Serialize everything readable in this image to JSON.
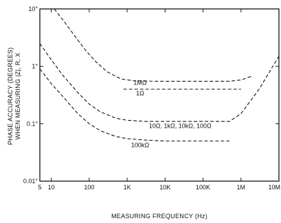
{
  "chart_data": {
    "type": "line",
    "xlabel": "MEASURING FREQUENCY (Hz)",
    "ylabel_line1": "PHASE ACCURACY (DEGREES)",
    "ylabel_line2": "WHEN MEASURING |Z|, R, X",
    "x_scale": "log",
    "y_scale": "log",
    "xlim": [
      5,
      10000000
    ],
    "ylim": [
      0.01,
      10
    ],
    "x_ticks": [
      {
        "value": 5,
        "label": "5"
      },
      {
        "value": 10,
        "label": "10"
      },
      {
        "value": 100,
        "label": "100"
      },
      {
        "value": 1000,
        "label": "1K"
      },
      {
        "value": 10000,
        "label": "10K"
      },
      {
        "value": 100000,
        "label": "100K"
      },
      {
        "value": 1000000,
        "label": "1M"
      },
      {
        "value": 10000000,
        "label": "10M"
      }
    ],
    "y_ticks": [
      {
        "value": 10,
        "label": "10°"
      },
      {
        "value": 1,
        "label": "1°"
      },
      {
        "value": 0.1,
        "label": "0.1°"
      },
      {
        "value": 0.01,
        "label": "0.01°"
      }
    ],
    "series": [
      {
        "name": "1MΩ",
        "x": [
          12,
          20,
          40,
          80,
          150,
          300,
          700,
          1500,
          5000,
          20000,
          100000,
          500000,
          1000000,
          2000000
        ],
        "y": [
          10,
          6.5,
          3.5,
          1.9,
          1.2,
          0.8,
          0.6,
          0.56,
          0.55,
          0.55,
          0.55,
          0.55,
          0.58,
          0.68
        ]
      },
      {
        "name": "1Ω",
        "x": [
          800,
          1000000
        ],
        "y": [
          0.4,
          0.4
        ]
      },
      {
        "name": "10Ω, 1kΩ, 10kΩ, 100Ω",
        "x": [
          5,
          10,
          20,
          50,
          100,
          200,
          500,
          1000,
          3000,
          10000,
          100000,
          500000,
          1000000,
          3000000,
          10000000
        ],
        "y": [
          2.5,
          1.3,
          0.7,
          0.35,
          0.22,
          0.16,
          0.125,
          0.115,
          0.11,
          0.11,
          0.11,
          0.11,
          0.15,
          0.4,
          1.5
        ]
      },
      {
        "name": "100kΩ",
        "x": [
          5,
          10,
          20,
          50,
          100,
          200,
          500,
          1000,
          3000,
          10000,
          100000,
          500000
        ],
        "y": [
          0.9,
          0.5,
          0.3,
          0.15,
          0.1,
          0.075,
          0.06,
          0.055,
          0.052,
          0.05,
          0.05,
          0.05
        ]
      }
    ],
    "grid": false,
    "legend": "inline labels"
  }
}
